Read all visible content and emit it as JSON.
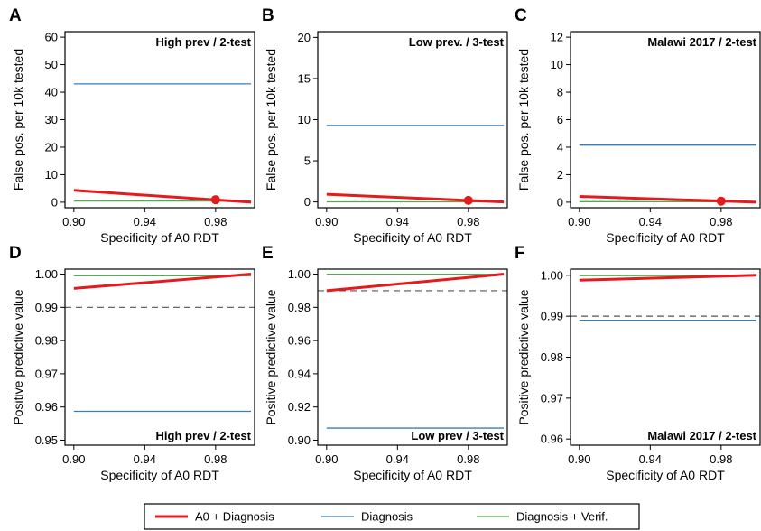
{
  "chart_data": [
    {
      "letter": "A",
      "type": "line",
      "title": "High prev / 2-test",
      "title_pos": "top-right",
      "xlabel": "Specificity of A0 RDT",
      "ylabel": "False pos. per 10k tested",
      "xlim": [
        0.895,
        1.002
      ],
      "ylim": [
        -2,
        62
      ],
      "xticks": [
        0.9,
        0.94,
        0.98
      ],
      "yticks": [
        0,
        10,
        20,
        30,
        40,
        50,
        60
      ],
      "series": [
        {
          "name": "A0 + Diagnosis",
          "color": "#e41a1c",
          "width": 3,
          "x": [
            0.9,
            1.0
          ],
          "y": [
            4.3,
            0
          ]
        },
        {
          "name": "Diagnosis",
          "color": "#377eb8",
          "width": 1.3,
          "x": [
            0.9,
            1.0
          ],
          "y": [
            43.0,
            43.0
          ]
        },
        {
          "name": "Diagnosis + Verif.",
          "color": "#4daf4a",
          "width": 1.3,
          "x": [
            0.9,
            1.0
          ],
          "y": [
            0.43,
            0.43
          ]
        }
      ],
      "marker": {
        "x": 0.98,
        "y": 0.9,
        "color": "#e41a1c"
      }
    },
    {
      "letter": "B",
      "type": "line",
      "title": "Low prev. / 3-test",
      "title_pos": "top-right",
      "xlabel": "Specificity of A0 RDT",
      "ylabel": "False pos. per 10k tested",
      "xlim": [
        0.895,
        1.002
      ],
      "ylim": [
        -0.7,
        20.7
      ],
      "xticks": [
        0.9,
        0.94,
        0.98
      ],
      "yticks": [
        0,
        5,
        10,
        15,
        20
      ],
      "series": [
        {
          "name": "A0 + Diagnosis",
          "color": "#e41a1c",
          "width": 3,
          "x": [
            0.9,
            1.0
          ],
          "y": [
            0.93,
            0
          ]
        },
        {
          "name": "Diagnosis",
          "color": "#377eb8",
          "width": 1.3,
          "x": [
            0.9,
            1.0
          ],
          "y": [
            9.3,
            9.3
          ]
        },
        {
          "name": "Diagnosis + Verif.",
          "color": "#4daf4a",
          "width": 1.3,
          "x": [
            0.9,
            1.0
          ],
          "y": [
            0.01,
            0.01
          ]
        }
      ],
      "marker": {
        "x": 0.98,
        "y": 0.19,
        "color": "#e41a1c"
      }
    },
    {
      "letter": "C",
      "type": "line",
      "title": "Malawi 2017 / 2-test",
      "title_pos": "top-right",
      "xlabel": "Specificity of A0 RDT",
      "ylabel": "False pos. per 10k tested",
      "xlim": [
        0.895,
        1.002
      ],
      "ylim": [
        -0.4,
        12.4
      ],
      "xticks": [
        0.9,
        0.94,
        0.98
      ],
      "yticks": [
        0,
        2,
        4,
        6,
        8,
        10,
        12
      ],
      "series": [
        {
          "name": "A0 + Diagnosis",
          "color": "#e41a1c",
          "width": 3,
          "x": [
            0.9,
            1.0
          ],
          "y": [
            0.42,
            0
          ]
        },
        {
          "name": "Diagnosis",
          "color": "#377eb8",
          "width": 1.3,
          "x": [
            0.9,
            1.0
          ],
          "y": [
            4.15,
            4.15
          ]
        },
        {
          "name": "Diagnosis + Verif.",
          "color": "#4daf4a",
          "width": 1.3,
          "x": [
            0.9,
            1.0
          ],
          "y": [
            0.04,
            0.04
          ]
        }
      ],
      "marker": {
        "x": 0.98,
        "y": 0.08,
        "color": "#e41a1c"
      }
    },
    {
      "letter": "D",
      "type": "line",
      "title": "High prev / 2-test",
      "title_pos": "bottom-right",
      "xlabel": "Specificity of A0 RDT",
      "ylabel": "Positive predictive value",
      "xlim": [
        0.895,
        1.002
      ],
      "ylim": [
        0.9485,
        1.0015
      ],
      "xticks": [
        0.9,
        0.94,
        0.98
      ],
      "yticks": [
        0.95,
        0.96,
        0.97,
        0.98,
        0.99,
        1.0
      ],
      "ytick_labels": [
        "0.95",
        "0.96",
        "0.97",
        "0.98",
        "0.99",
        "1.00"
      ],
      "series": [
        {
          "name": "A0 + Diagnosis",
          "color": "#e41a1c",
          "width": 3,
          "x": [
            0.9,
            1.0
          ],
          "y": [
            0.9957,
            1.0
          ]
        },
        {
          "name": "Diagnosis",
          "color": "#377eb8",
          "width": 1.3,
          "x": [
            0.9,
            1.0
          ],
          "y": [
            0.9587,
            0.9587
          ]
        },
        {
          "name": "Diagnosis + Verif.",
          "color": "#4daf4a",
          "width": 1.3,
          "x": [
            0.9,
            1.0
          ],
          "y": [
            0.9995,
            0.9995
          ]
        }
      ],
      "hline": {
        "y": 0.99,
        "style": "dashed",
        "color": "#555555"
      }
    },
    {
      "letter": "E",
      "type": "line",
      "title": "Low prev / 3-test",
      "title_pos": "bottom-right",
      "xlabel": "Specificity of A0 RDT",
      "ylabel": "Positive predictive value",
      "xlim": [
        0.895,
        1.002
      ],
      "ylim": [
        0.897,
        1.003
      ],
      "xticks": [
        0.9,
        0.94,
        0.98
      ],
      "yticks": [
        0.9,
        0.92,
        0.94,
        0.96,
        0.98,
        1.0
      ],
      "ytick_labels": [
        "0.90",
        "0.92",
        "0.94",
        "0.96",
        "0.98",
        "1.00"
      ],
      "series": [
        {
          "name": "A0 + Diagnosis",
          "color": "#e41a1c",
          "width": 3,
          "x": [
            0.9,
            1.0
          ],
          "y": [
            0.99,
            1.0
          ]
        },
        {
          "name": "Diagnosis",
          "color": "#377eb8",
          "width": 1.3,
          "x": [
            0.9,
            1.0
          ],
          "y": [
            0.9073,
            0.9073
          ]
        },
        {
          "name": "Diagnosis + Verif.",
          "color": "#4daf4a",
          "width": 1.3,
          "x": [
            0.9,
            1.0
          ],
          "y": [
            0.99995,
            0.99995
          ]
        }
      ],
      "hline": {
        "y": 0.99,
        "style": "dashed",
        "color": "#555555"
      }
    },
    {
      "letter": "F",
      "type": "line",
      "title": "Malawi 2017 / 2-test",
      "title_pos": "bottom-right",
      "xlabel": "Specificity of A0 RDT",
      "ylabel": "Positive predictive value",
      "xlim": [
        0.895,
        1.002
      ],
      "ylim": [
        0.9585,
        1.0015
      ],
      "xticks": [
        0.9,
        0.94,
        0.98
      ],
      "yticks": [
        0.96,
        0.97,
        0.98,
        0.99,
        1.0
      ],
      "ytick_labels": [
        "0.96",
        "0.97",
        "0.98",
        "0.99",
        "1.00"
      ],
      "series": [
        {
          "name": "A0 + Diagnosis",
          "color": "#e41a1c",
          "width": 3,
          "x": [
            0.9,
            1.0
          ],
          "y": [
            0.9988,
            1.0
          ]
        },
        {
          "name": "Diagnosis",
          "color": "#377eb8",
          "width": 1.3,
          "x": [
            0.9,
            1.0
          ],
          "y": [
            0.989,
            0.989
          ]
        },
        {
          "name": "Diagnosis + Verif.",
          "color": "#4daf4a",
          "width": 1.3,
          "x": [
            0.9,
            1.0
          ],
          "y": [
            0.9999,
            0.9999
          ]
        }
      ],
      "hline": {
        "y": 0.99,
        "style": "dashed",
        "color": "#555555"
      }
    }
  ],
  "legend": {
    "placement": "bottom-center",
    "items": [
      {
        "label": "A0 + Diagnosis",
        "color": "#e41a1c",
        "width": 3
      },
      {
        "label": "Diagnosis",
        "color": "#377eb8",
        "width": 1.3
      },
      {
        "label": "Diagnosis + Verif.",
        "color": "#4daf4a",
        "width": 1.3
      }
    ]
  }
}
